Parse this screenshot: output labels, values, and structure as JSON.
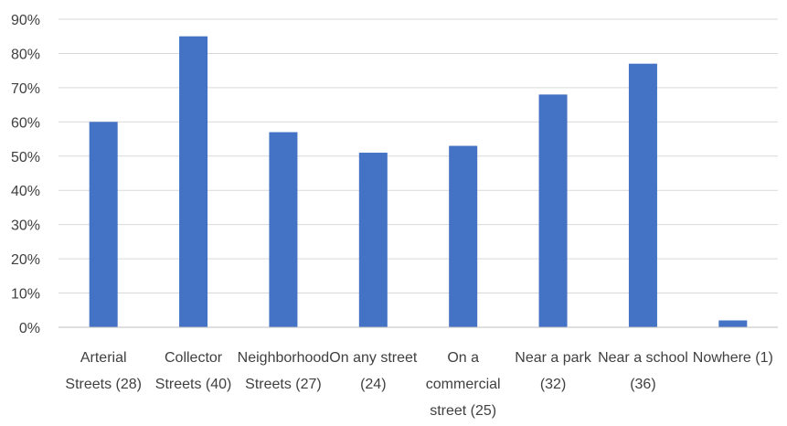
{
  "chart_data": {
    "type": "bar",
    "categories": [
      [
        "Arterial",
        "Streets (28)"
      ],
      [
        "Collector",
        "Streets (40)"
      ],
      [
        "Neighborhood",
        "Streets (27)"
      ],
      [
        "On any street",
        "(24)"
      ],
      [
        "On a",
        "commercial",
        "street (25)"
      ],
      [
        "Near a park",
        "(32)"
      ],
      [
        "Near a school",
        "(36)"
      ],
      [
        "Nowhere (1)"
      ]
    ],
    "values": [
      60,
      85,
      57,
      51,
      53,
      68,
      77,
      2
    ],
    "ylim": [
      0,
      90
    ],
    "yticks": [
      0,
      10,
      20,
      30,
      40,
      50,
      60,
      70,
      80,
      90
    ],
    "ytick_labels": [
      "0%",
      "10%",
      "20%",
      "30%",
      "40%",
      "50%",
      "60%",
      "70%",
      "80%",
      "90%"
    ],
    "grid": true,
    "colors": {
      "bar": "#4472C4",
      "grid": "#d9d9d9",
      "axis": "#bfbfbf",
      "text": "#404040"
    }
  }
}
